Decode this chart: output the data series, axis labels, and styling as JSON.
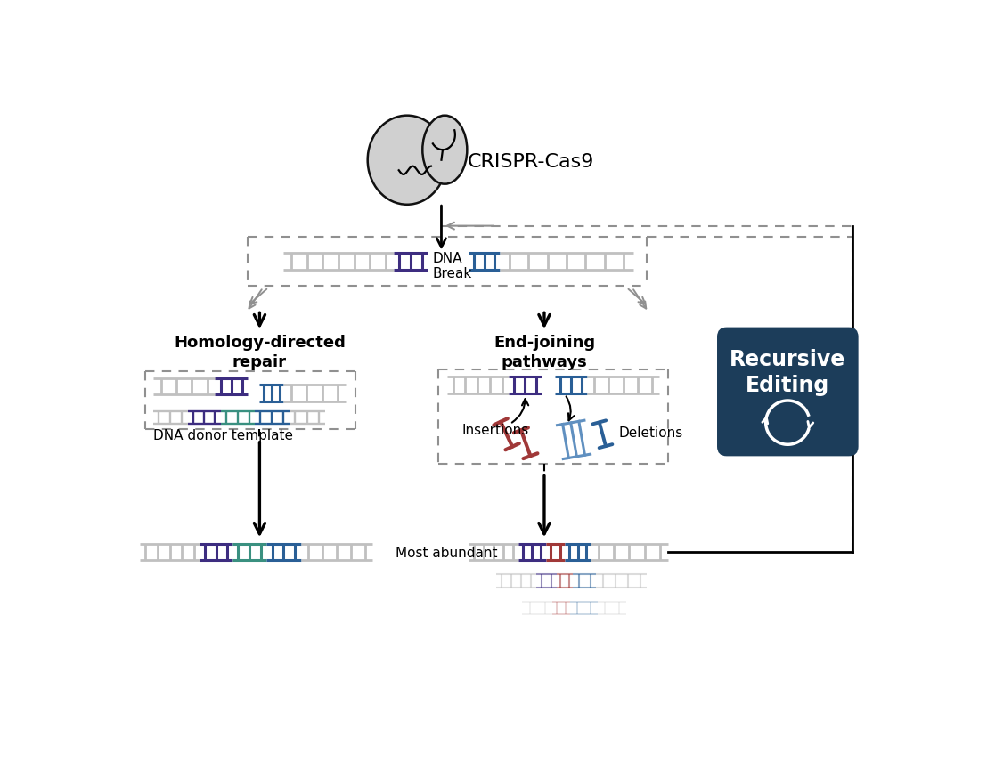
{
  "bg_color": "#ffffff",
  "dna_gray": "#c0c0c0",
  "purple_color": "#3d2d80",
  "blue_color": "#2a5f96",
  "teal_color": "#3a9080",
  "red_color": "#a03838",
  "light_blue_color": "#6090c0",
  "light_blue_fill": "#90b8e0",
  "recursive_bg": "#1c3d5a",
  "recursive_text": "#ffffff",
  "dashed_color": "#909090",
  "gray_arrow": "#909090",
  "cas9_fill": "#d0d0d0",
  "cas9_stroke": "#111111",
  "title": "CRISPR-Cas9",
  "label_hdr": "Homology-directed\nrepair",
  "label_ej": "End-joining\npathways",
  "label_dna": "DNA donor template",
  "label_ins": "Insertions",
  "label_del": "Deletions",
  "label_most": "Most abundant",
  "label_dna_break": "DNA\nBreak",
  "label_recursive": "Recursive\nEditing"
}
